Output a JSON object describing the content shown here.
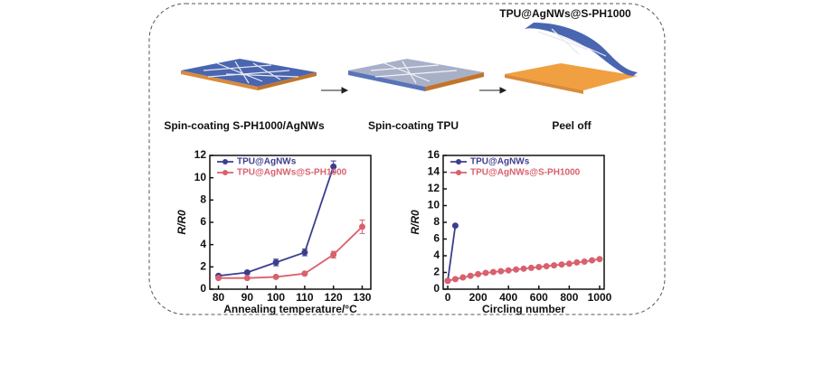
{
  "process": {
    "steps": [
      "Spin-coating S-PH1000/AgNWs",
      "Spin-coating TPU",
      "Peel off"
    ],
    "product_label": "TPU@AgNWs@S-PH1000"
  },
  "chart_data": [
    {
      "type": "line",
      "x_label": "Annealing temperature/°C",
      "y_label": "R/R0",
      "x": [
        80,
        90,
        100,
        110,
        120,
        130
      ],
      "xlim": [
        77,
        133
      ],
      "xticks": [
        80,
        90,
        100,
        110,
        120,
        130
      ],
      "ylim": [
        0,
        12
      ],
      "yticks": [
        0,
        2,
        4,
        6,
        8,
        10,
        12
      ],
      "series": [
        {
          "name": "TPU@AgNWs",
          "color": "#3d3d8f",
          "values": [
            1.2,
            1.5,
            2.4,
            3.3,
            11.0,
            null
          ],
          "errors": [
            0.1,
            0.1,
            0.3,
            0.3,
            0.5,
            null
          ]
        },
        {
          "name": "TPU@AgNWs@S-PH1000",
          "color": "#d9606e",
          "values": [
            1.0,
            1.0,
            1.1,
            1.4,
            3.1,
            5.6
          ],
          "errors": [
            0.1,
            0.1,
            0.1,
            0.1,
            0.3,
            0.6
          ]
        }
      ]
    },
    {
      "type": "line",
      "x_label": "Circling number",
      "y_label": "R/R0",
      "xlim": [
        -30,
        1030
      ],
      "xticks": [
        0,
        200,
        400,
        600,
        800,
        1000
      ],
      "ylim": [
        0,
        16
      ],
      "yticks": [
        0,
        2,
        4,
        6,
        8,
        10,
        12,
        14,
        16
      ],
      "series": [
        {
          "name": "TPU@AgNWs",
          "color": "#3d3d8f",
          "x": [
            0,
            50
          ],
          "values": [
            1.0,
            7.6
          ]
        },
        {
          "name": "TPU@AgNWs@S-PH1000",
          "color": "#d9606e",
          "x": [
            0,
            50,
            100,
            150,
            200,
            250,
            300,
            350,
            400,
            450,
            500,
            550,
            600,
            650,
            700,
            750,
            800,
            850,
            900,
            950,
            1000
          ],
          "values": [
            1.0,
            1.2,
            1.4,
            1.6,
            1.8,
            1.95,
            2.05,
            2.15,
            2.25,
            2.35,
            2.45,
            2.55,
            2.65,
            2.75,
            2.85,
            2.95,
            3.05,
            3.2,
            3.3,
            3.45,
            3.6
          ]
        }
      ]
    }
  ]
}
